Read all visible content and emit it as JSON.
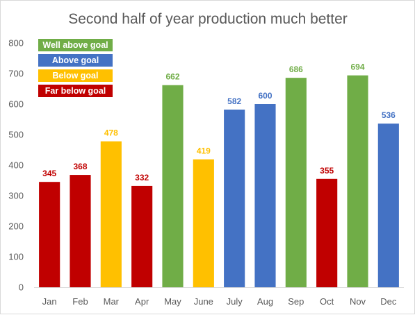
{
  "chart_data": {
    "type": "bar",
    "title": "Second half of year production much better",
    "xlabel": "",
    "ylabel": "",
    "ylim": [
      0,
      800
    ],
    "yticks": [
      0,
      100,
      200,
      300,
      400,
      500,
      600,
      700,
      800
    ],
    "grid": false,
    "categories": [
      "Jan",
      "Feb",
      "Mar",
      "Apr",
      "May",
      "June",
      "July",
      "Aug",
      "Sep",
      "Oct",
      "Nov",
      "Dec"
    ],
    "values": [
      345,
      368,
      478,
      332,
      662,
      419,
      582,
      600,
      686,
      355,
      694,
      536
    ],
    "bar_status": [
      "far_below",
      "far_below",
      "below",
      "far_below",
      "well_above",
      "below",
      "above",
      "above",
      "well_above",
      "far_below",
      "well_above",
      "above"
    ],
    "legend": {
      "placement": "top-left",
      "entries": [
        {
          "key": "well_above",
          "label": "Well above goal",
          "color": "#70ad47"
        },
        {
          "key": "above",
          "label": "Above goal",
          "color": "#4472c4"
        },
        {
          "key": "below",
          "label": "Below goal",
          "color": "#ffc000"
        },
        {
          "key": "far_below",
          "label": "Far below goal",
          "color": "#c00000"
        }
      ]
    }
  }
}
